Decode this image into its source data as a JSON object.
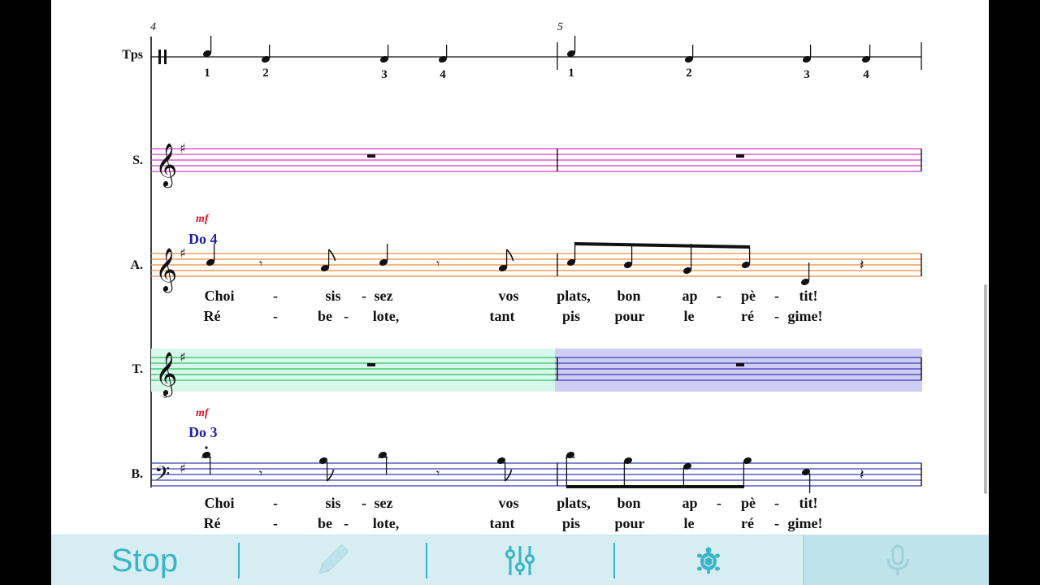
{
  "score": {
    "measure_numbers": [
      "4",
      "5"
    ],
    "staves": [
      {
        "id": "tps",
        "label": "Tps",
        "color": "#111111"
      },
      {
        "id": "soprano",
        "label": "S.",
        "color": "#d63cc8"
      },
      {
        "id": "alto",
        "label": "A.",
        "color": "#f0893a"
      },
      {
        "id": "tenor",
        "label": "T.",
        "color": "#2fbf5f"
      },
      {
        "id": "bass",
        "label": "B.",
        "color": "#3b3bb8"
      }
    ],
    "beats": [
      "1",
      "2",
      "3",
      "4",
      "1",
      "2",
      "3",
      "4"
    ],
    "alto": {
      "dynamic": "mf",
      "pitch_label": "Do 4",
      "lyrics_line1": [
        "Choi",
        "-",
        "sis",
        "-",
        "sez",
        "vos",
        "plats,",
        "bon",
        "ap",
        "-",
        "pè",
        "-",
        "tit!"
      ],
      "lyrics_line2": [
        "Ré",
        "-",
        "be",
        "-",
        "lote,",
        "tant",
        "pis",
        "pour",
        "le",
        "ré",
        "-",
        "gime!"
      ]
    },
    "bass": {
      "dynamic": "mf",
      "pitch_label": "Do 3",
      "lyrics_line1": [
        "Choi",
        "-",
        "sis",
        "-",
        "sez",
        "vos",
        "plats,",
        "bon",
        "ap",
        "-",
        "pè",
        "-",
        "tit!"
      ],
      "lyrics_line2": [
        "Ré",
        "-",
        "be",
        "-",
        "lote,",
        "tant",
        "pis",
        "pour",
        "le",
        "ré",
        "-",
        "gime!"
      ]
    },
    "highlights": {
      "tenor_measure4_color": "#d9f8ec",
      "tenor_measure5_color": "#cfcdf3"
    }
  },
  "toolbar": {
    "stop_label": "Stop",
    "accent_color": "#3ab4c7",
    "background": "#d6eef1",
    "active_background": "#bfe3ea",
    "buttons": [
      {
        "name": "stop",
        "icon": "text-stop"
      },
      {
        "name": "edit",
        "icon": "pencil-icon"
      },
      {
        "name": "mixer",
        "icon": "sliders-icon"
      },
      {
        "name": "tempo",
        "icon": "turtle-icon"
      },
      {
        "name": "voice",
        "icon": "microphone-icon"
      }
    ]
  }
}
